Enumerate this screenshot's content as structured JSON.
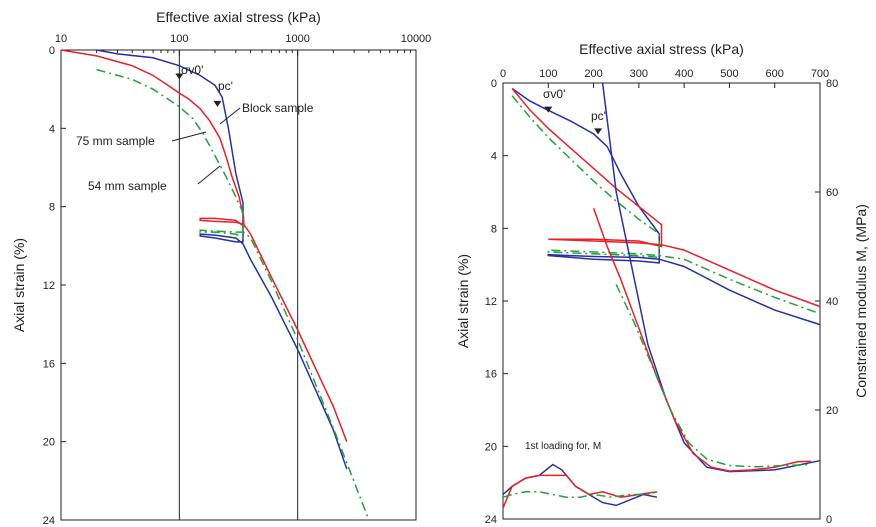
{
  "chart_data": [
    {
      "type": "line",
      "title": "",
      "xlabel": "Effective axial stress (kPa)",
      "ylabel": "Axial strain (%)",
      "x_scale": "log",
      "xlim": [
        10,
        10000
      ],
      "ylim": [
        0,
        24
      ],
      "y_inverted": true,
      "x_ticks": [
        10,
        100,
        1000,
        10000
      ],
      "x_tick_labels": [
        "10",
        "100",
        "1000",
        "10000"
      ],
      "y_ticks": [
        0,
        4,
        8,
        12,
        16,
        20,
        24
      ],
      "y_tick_labels": [
        "0",
        "4",
        "8",
        "12",
        "16",
        "20",
        "24"
      ],
      "vertical_lines_x": [
        100,
        1000
      ],
      "series": [
        {
          "name": "Block sample",
          "color": "#2b2fa6",
          "dash": "solid",
          "x": [
            20,
            30,
            60,
            100,
            150,
            200,
            230,
            260,
            300,
            345,
            345,
            300,
            200,
            150,
            150,
            200,
            300,
            345,
            400,
            600,
            1000,
            2000,
            2600
          ],
          "y": [
            0,
            0.2,
            0.4,
            0.8,
            1.3,
            1.8,
            2.4,
            4.0,
            6.3,
            7.8,
            9.8,
            9.8,
            9.6,
            9.5,
            9.4,
            9.45,
            9.6,
            9.9,
            10.7,
            12.6,
            15.3,
            19.4,
            21.4
          ]
        },
        {
          "name": "75 mm sample",
          "color": "#e8202a",
          "dash": "solid",
          "x": [
            10,
            20,
            40,
            60,
            80,
            100,
            120,
            150,
            180,
            220,
            250,
            280,
            320,
            350,
            350,
            300,
            200,
            150,
            150,
            200,
            300,
            350,
            400,
            600,
            1000,
            2000,
            2600
          ],
          "y": [
            0,
            0.3,
            0.8,
            1.3,
            1.8,
            2.2,
            2.5,
            3.0,
            3.6,
            4.5,
            5.5,
            6.5,
            7.5,
            8.6,
            9.0,
            8.7,
            8.6,
            8.6,
            8.7,
            8.75,
            8.8,
            8.9,
            9.4,
            11.6,
            14.3,
            18.2,
            20.0
          ]
        },
        {
          "name": "54 mm sample",
          "color": "#1fa33a",
          "dash": "dash-dot",
          "x": [
            20,
            40,
            60,
            80,
            100,
            130,
            160,
            200,
            250,
            300,
            345,
            345,
            300,
            200,
            150,
            150,
            200,
            300,
            350,
            400,
            600,
            1000,
            2000,
            4000
          ],
          "y": [
            1.0,
            1.5,
            2.0,
            2.5,
            2.9,
            3.5,
            4.3,
            5.4,
            6.5,
            7.5,
            8.3,
            9.6,
            9.4,
            9.3,
            9.3,
            9.2,
            9.25,
            9.3,
            9.3,
            9.6,
            11.8,
            14.8,
            19.3,
            24.0
          ]
        }
      ],
      "annotations": [
        "σv0'",
        "pc'",
        "Block sample",
        "75 mm sample",
        "54 mm sample"
      ]
    },
    {
      "type": "line",
      "title": "",
      "xlabel": "Effective axial stress (kPa)",
      "ylabel": "Axial strain (%)",
      "y2label": "Constrained modulus M, (MPa)",
      "xlim": [
        0,
        700
      ],
      "ylim": [
        0,
        24
      ],
      "y2lim": [
        0,
        80
      ],
      "y_inverted": true,
      "x_ticks": [
        0,
        100,
        200,
        300,
        400,
        500,
        600,
        700
      ],
      "x_tick_labels": [
        "0",
        "100",
        "200",
        "300",
        "400",
        "500",
        "600",
        "700"
      ],
      "y_ticks": [
        0,
        4,
        8,
        12,
        16,
        20,
        24
      ],
      "y_tick_labels": [
        "0",
        "4",
        "8",
        "12",
        "16",
        "20",
        "24"
      ],
      "y2_ticks": [
        0,
        20,
        40,
        60,
        80
      ],
      "y2_tick_labels": [
        "0",
        "20",
        "40",
        "60",
        "80"
      ],
      "strain_series": [
        {
          "name": "Block sample",
          "color": "#2b2fa6",
          "dash": "solid",
          "x": [
            20,
            60,
            100,
            150,
            200,
            230,
            260,
            300,
            345,
            345,
            300,
            200,
            150,
            100,
            100,
            200,
            300,
            345,
            400,
            500,
            600,
            700
          ],
          "y": [
            0.3,
            1.0,
            1.5,
            2.1,
            2.8,
            3.5,
            5.0,
            6.8,
            8.3,
            9.9,
            9.8,
            9.7,
            9.6,
            9.5,
            9.45,
            9.55,
            9.6,
            9.7,
            10.1,
            11.4,
            12.5,
            13.3
          ]
        },
        {
          "name": "75 mm sample",
          "color": "#e8202a",
          "dash": "solid",
          "x": [
            20,
            60,
            100,
            150,
            200,
            250,
            300,
            350,
            350,
            300,
            200,
            150,
            100,
            100,
            200,
            300,
            350,
            400,
            500,
            600,
            700
          ],
          "y": [
            0.3,
            1.5,
            2.5,
            3.6,
            4.7,
            5.8,
            6.8,
            7.8,
            9.0,
            8.7,
            8.6,
            8.6,
            8.6,
            8.6,
            8.7,
            8.8,
            8.9,
            9.2,
            10.3,
            11.4,
            12.3
          ]
        },
        {
          "name": "54 mm sample",
          "color": "#1fa33a",
          "dash": "dash-dot",
          "x": [
            20,
            60,
            100,
            150,
            200,
            250,
            300,
            345,
            345,
            300,
            200,
            100,
            100,
            200,
            300,
            345,
            400,
            500,
            600,
            700
          ],
          "y": [
            0.7,
            1.9,
            3.0,
            4.2,
            5.4,
            6.5,
            7.5,
            8.3,
            9.6,
            9.5,
            9.4,
            9.3,
            9.2,
            9.3,
            9.4,
            9.5,
            9.7,
            10.8,
            11.8,
            12.7
          ]
        }
      ],
      "modulus_series": [
        {
          "name": "Block sample",
          "color": "#2b2fa6",
          "dash": "solid",
          "x": [
            220,
            250,
            280,
            320,
            360,
            400,
            450,
            500,
            600,
            700
          ],
          "y": [
            80,
            60,
            48,
            32,
            22,
            14,
            9.5,
            8.7,
            9.0,
            10.7
          ]
        },
        {
          "name": "75 mm sample",
          "color": "#e8202a",
          "dash": "solid",
          "x": [
            200,
            230,
            260,
            300,
            340,
            380,
            420,
            460,
            500,
            550,
            600,
            650,
            680
          ],
          "y": [
            57,
            50,
            44,
            35,
            26,
            18,
            12,
            9.5,
            8.8,
            9.0,
            9.5,
            10.5,
            10.6
          ]
        },
        {
          "name": "54 mm sample",
          "color": "#1fa33a",
          "dash": "dash-dot",
          "x": [
            250,
            290,
            330,
            370,
            410,
            450,
            500,
            560,
            620,
            680
          ],
          "y": [
            43,
            36,
            28,
            20,
            14,
            11,
            9.8,
            9.6,
            9.8,
            10.0
          ]
        },
        {
          "name": "1st loading, Block sample",
          "color": "#2b2fa6",
          "dash": "solid",
          "x": [
            0,
            20,
            50,
            80,
            110,
            130,
            160,
            190,
            220,
            250,
            280,
            310,
            340
          ],
          "y": [
            4.5,
            6.0,
            7.5,
            8.0,
            10.0,
            9.0,
            6.0,
            4.5,
            3.0,
            2.5,
            3.5,
            4.5,
            4.0
          ]
        },
        {
          "name": "1st loading, 75 mm sample",
          "color": "#e8202a",
          "dash": "solid",
          "x": [
            0,
            20,
            50,
            80,
            110,
            140,
            160,
            190,
            220,
            260,
            300,
            340
          ],
          "y": [
            2.0,
            6.0,
            7.5,
            8.0,
            8.0,
            8.0,
            6.0,
            4.5,
            5.0,
            4.0,
            4.5,
            5.0
          ]
        },
        {
          "name": "1st loading, 54 mm sample",
          "color": "#1fa33a",
          "dash": "dash-dot",
          "x": [
            0,
            20,
            50,
            80,
            110,
            140,
            170,
            200,
            240,
            280,
            320,
            340
          ],
          "y": [
            4.0,
            4.5,
            5.0,
            5.0,
            4.5,
            4.0,
            4.0,
            4.5,
            4.0,
            4.5,
            4.5,
            5.0
          ]
        }
      ],
      "annotations": [
        "σv0'",
        "pc'",
        "1st loading for, M"
      ]
    }
  ]
}
